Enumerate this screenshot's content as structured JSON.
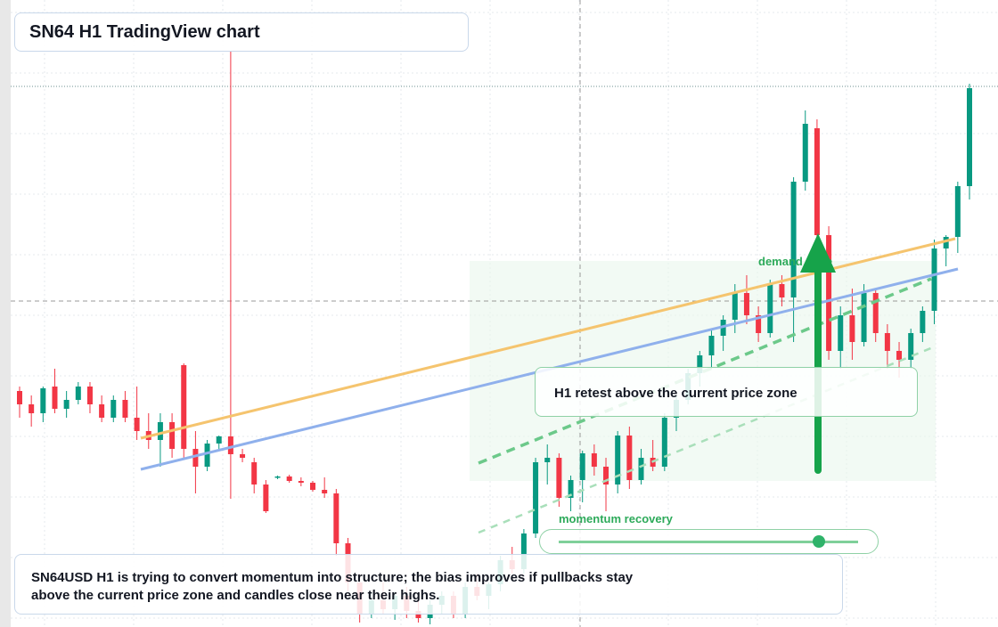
{
  "chart_data": {
    "type": "candlestick",
    "title": "SN64 H1 TradingView chart",
    "open": [
      26.5,
      25,
      24,
      27,
      24.5,
      25.5,
      27,
      25,
      23.5,
      25.5,
      23.5,
      22,
      21,
      23,
      29.4,
      20,
      18,
      20.6,
      21.4,
      19.4,
      18.5,
      16,
      16.8,
      16.9,
      16.4,
      16.2,
      15.4,
      15,
      9.4,
      5,
      1.5,
      3,
      2,
      3.5,
      1.8,
      1,
      2.5,
      3.5,
      1.5,
      4.5,
      3.5,
      4.8,
      7.5,
      6.5,
      10.5,
      18.5,
      19,
      14.5,
      16.5,
      19.5,
      18,
      16,
      21.5,
      16.5,
      19,
      18,
      23.5,
      25.5,
      28.5,
      30.5,
      32.7,
      34.5,
      37.5,
      35,
      33,
      38.5,
      37,
      50,
      56,
      44,
      31,
      35,
      32,
      37.5,
      33,
      31,
      30,
      33,
      35.5,
      42.5,
      43.8,
      49.5
    ],
    "high": [
      27,
      26,
      27,
      29,
      26.5,
      27.5,
      27.5,
      26,
      26,
      26.5,
      27,
      24,
      24,
      24,
      29.6,
      22,
      21,
      21.5,
      64.7,
      20,
      19,
      16.5,
      17,
      17.1,
      16.8,
      16.4,
      16.8,
      15.5,
      10,
      6,
      4,
      5,
      4,
      4.5,
      3,
      3,
      4,
      4,
      5,
      6,
      5,
      8,
      9,
      11,
      19,
      20.5,
      19.5,
      17,
      19.8,
      20.5,
      19,
      22,
      22.5,
      20,
      21,
      24,
      26,
      29,
      31,
      33.5,
      35,
      38.5,
      39.5,
      36,
      39,
      39.5,
      50.5,
      58,
      57,
      45,
      36,
      38,
      38.5,
      38,
      34,
      32,
      33.5,
      36,
      43.5,
      44,
      50,
      61
    ],
    "low": [
      23.5,
      22.5,
      23,
      24,
      23.5,
      25,
      24,
      23,
      23,
      23,
      21,
      20,
      18,
      19,
      19,
      15,
      17.5,
      20,
      14.4,
      18.5,
      15,
      12.8,
      16.6,
      16.2,
      15.8,
      15.2,
      14.5,
      8,
      4,
      0.5,
      1,
      1.5,
      0.8,
      1,
      0.5,
      0.3,
      1.5,
      1,
      1,
      3,
      2,
      4,
      6,
      6,
      10,
      16,
      13.5,
      13,
      14,
      17,
      13,
      15,
      15.5,
      16,
      17.5,
      17.5,
      22,
      25,
      27,
      29,
      31,
      33,
      34,
      32,
      32.5,
      36,
      32,
      49,
      43,
      30,
      29,
      30,
      31.5,
      32,
      29,
      28,
      29,
      32,
      34,
      40.5,
      42,
      48
    ],
    "close": [
      25,
      24,
      26.8,
      24.5,
      25.5,
      27,
      25,
      23.5,
      25.5,
      23.5,
      22,
      21,
      23,
      20,
      20,
      18,
      20.6,
      21.4,
      19.4,
      19,
      16,
      13,
      16.9,
      16.4,
      16.2,
      15.4,
      15,
      9.4,
      5,
      1.5,
      3,
      2,
      3.5,
      1.8,
      1,
      2.5,
      3.5,
      1.5,
      4.5,
      3.5,
      4.8,
      7.5,
      6.5,
      10.5,
      18.5,
      19,
      14.5,
      16.5,
      19.5,
      18,
      16,
      21.5,
      16.5,
      19,
      18,
      23.5,
      25.5,
      28.5,
      30.5,
      32.7,
      34.5,
      37.5,
      35,
      33,
      38.5,
      37,
      50,
      56.5,
      44,
      31,
      35,
      32,
      37.5,
      33,
      31,
      30,
      33,
      35.5,
      42.5,
      43.8,
      49.5,
      60.5
    ],
    "ylim": [
      0,
      70
    ],
    "up_color": "#089981",
    "down_color": "#f23645",
    "grid": true
  },
  "annotations": {
    "zone_label": "demand zone",
    "retest_label": "H1 retest above the current price zone",
    "momentum_label": "momentum recovery",
    "note": "SN64USD H1 is trying to convert momentum into structure; the bias improves if pullbacks stay above the current price zone and candles close near their highs."
  }
}
